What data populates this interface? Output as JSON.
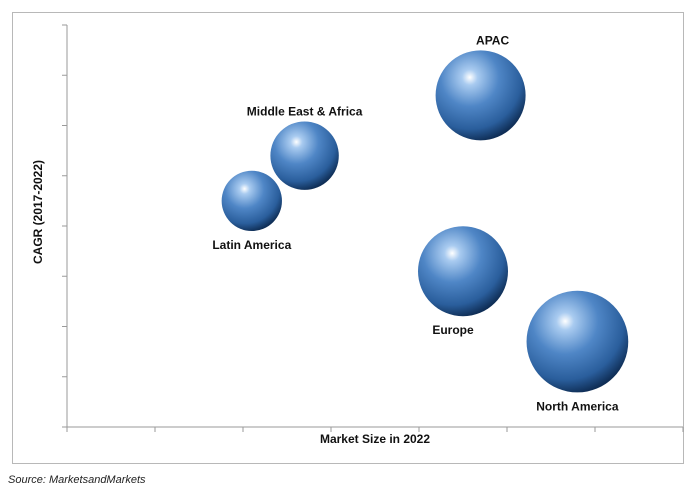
{
  "chart_data": {
    "type": "scatter",
    "xlabel": "Market Size in 2022",
    "ylabel": "CAGR (2017-2022)",
    "xlim": [
      0,
      7
    ],
    "ylim": [
      0,
      8
    ],
    "x_ticks": 7,
    "y_ticks": 8,
    "points": [
      {
        "label": "APAC",
        "x": 4.7,
        "y": 6.6,
        "size": 1.0,
        "label_pos": "above"
      },
      {
        "label": "Middle East & Africa",
        "x": 2.7,
        "y": 5.4,
        "size": 0.76,
        "label_pos": "above"
      },
      {
        "label": "Latin America",
        "x": 2.1,
        "y": 4.5,
        "size": 0.67,
        "label_pos": "below"
      },
      {
        "label": "Europe",
        "x": 4.5,
        "y": 3.1,
        "size": 1.0,
        "label_pos": "below"
      },
      {
        "label": "North America",
        "x": 5.8,
        "y": 1.7,
        "size": 1.13,
        "label_pos": "below"
      }
    ],
    "bubble_color": "#2f67a8",
    "grid": false
  },
  "source": "Source: MarketsandMarkets"
}
